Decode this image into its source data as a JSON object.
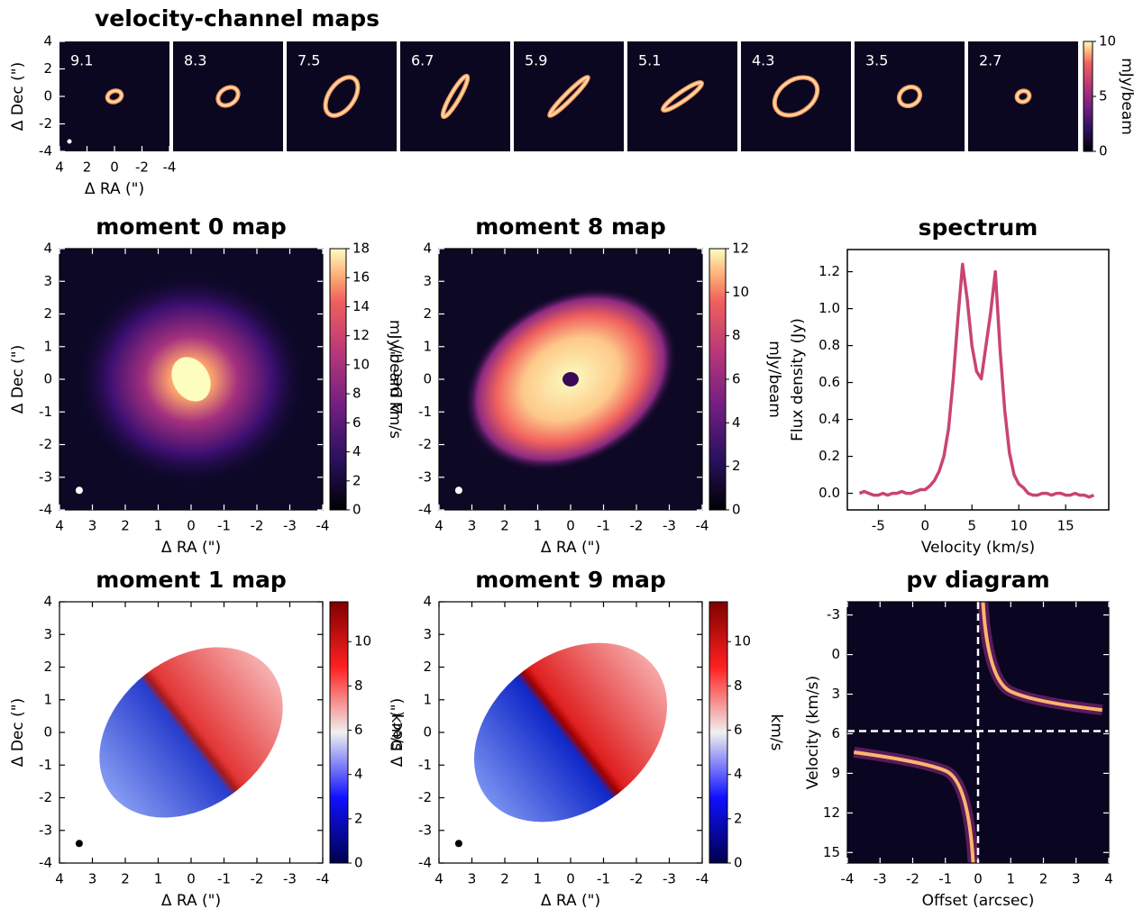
{
  "chart_data": [
    {
      "type": "channel_maps",
      "title": "velocity-channel maps",
      "channels": [
        9.1,
        8.3,
        7.5,
        6.7,
        5.9,
        5.1,
        4.3,
        3.5,
        2.7
      ],
      "xlabel": "Δ RA (\")",
      "ylabel": "Δ Dec (\")",
      "xlim": [
        4,
        -4
      ],
      "xticks": [
        4,
        2,
        0,
        -2,
        -4
      ],
      "ylim": [
        -4,
        4
      ],
      "yticks": [
        -4,
        -2,
        0,
        2,
        4
      ],
      "colormap": "magma",
      "colorbar": {
        "label": "mJy/beam",
        "lim": [
          0,
          10
        ],
        "ticks": [
          0,
          5,
          10
        ]
      }
    },
    {
      "type": "image",
      "title": "moment 0 map",
      "xlabel": "Δ RA (\")",
      "ylabel": "Δ Dec (\")",
      "xlim": [
        4,
        -4
      ],
      "xticks": [
        4,
        3,
        2,
        1,
        0,
        -1,
        -2,
        -3,
        -4
      ],
      "ylim": [
        -4,
        4
      ],
      "yticks": [
        -4,
        -3,
        -2,
        -1,
        0,
        1,
        2,
        3,
        4
      ],
      "colormap": "magma",
      "colorbar": {
        "label": "mJy/beam km/s",
        "lim": [
          0,
          18
        ],
        "ticks": [
          0,
          2,
          4,
          6,
          8,
          10,
          12,
          14,
          16,
          18
        ]
      }
    },
    {
      "type": "image",
      "title": "moment 8 map",
      "xlabel": "Δ RA (\")",
      "ylabel": "Δ Dec (\")",
      "xlim": [
        4,
        -4
      ],
      "xticks": [
        4,
        3,
        2,
        1,
        0,
        -1,
        -2,
        -3,
        -4
      ],
      "ylim": [
        -4,
        4
      ],
      "yticks": [
        -4,
        -3,
        -2,
        -1,
        0,
        1,
        2,
        3,
        4
      ],
      "colormap": "magma",
      "colorbar": {
        "label": "mJy/beam",
        "lim": [
          0,
          12
        ],
        "ticks": [
          0,
          2,
          4,
          6,
          8,
          10,
          12
        ]
      }
    },
    {
      "type": "line",
      "title": "spectrum",
      "xlabel": "Velocity (km/s)",
      "ylabel": "Flux density (Jy)",
      "color": "#c9456f",
      "xlim": [
        -8.3,
        19.6
      ],
      "xticks": [
        -5,
        0,
        5,
        10,
        15
      ],
      "ylim": [
        -0.09,
        1.32
      ],
      "yticks": [
        {
          "value": 0,
          "label": "0.0"
        },
        0.2,
        0.4,
        0.6,
        0.8,
        {
          "value": 1,
          "label": "1.0"
        },
        1.2
      ],
      "x": [
        -7,
        -6.5,
        -6,
        -5.5,
        -5,
        -4.5,
        -4,
        -3.5,
        -3,
        -2.5,
        -2,
        -1.5,
        -1,
        -0.5,
        0,
        0.5,
        1,
        1.5,
        2,
        2.5,
        3,
        3.5,
        4,
        4.5,
        5,
        5.5,
        6,
        6.5,
        7,
        7.5,
        8,
        8.5,
        9,
        9.5,
        10,
        10.5,
        11,
        11.5,
        12,
        12.5,
        13,
        13.5,
        14,
        14.5,
        15,
        15.5,
        16,
        16.5,
        17,
        17.5,
        18
      ],
      "values": [
        0,
        0.01,
        0,
        -0.01,
        -0.01,
        0,
        -0.01,
        0,
        0,
        0.01,
        0,
        0,
        0.01,
        0.02,
        0.02,
        0.04,
        0.07,
        0.12,
        0.2,
        0.35,
        0.62,
        0.95,
        1.24,
        1.05,
        0.8,
        0.66,
        0.62,
        0.8,
        0.98,
        1.2,
        0.78,
        0.45,
        0.22,
        0.1,
        0.05,
        0.03,
        0,
        -0.01,
        -0.01,
        0,
        0,
        -0.01,
        0,
        0,
        -0.01,
        -0.01,
        0,
        -0.01,
        -0.01,
        -0.02,
        -0.01
      ]
    },
    {
      "type": "image",
      "title": "moment 1 map",
      "xlabel": "Δ RA (\")",
      "ylabel": "Δ Dec (\")",
      "xlim": [
        4,
        -4
      ],
      "xticks": [
        4,
        3,
        2,
        1,
        0,
        -1,
        -2,
        -3,
        -4
      ],
      "ylim": [
        -4,
        4
      ],
      "yticks": [
        -4,
        -3,
        -2,
        -1,
        0,
        1,
        2,
        3,
        4
      ],
      "colormap": "bwr",
      "colorbar": {
        "label": "km/s",
        "lim": [
          0,
          11.8
        ],
        "ticks": [
          0,
          2,
          4,
          6,
          8,
          10
        ]
      }
    },
    {
      "type": "image",
      "title": "moment 9 map",
      "xlabel": "Δ RA (\")",
      "ylabel": "Δ Dec (\")",
      "xlim": [
        4,
        -4
      ],
      "xticks": [
        4,
        3,
        2,
        1,
        0,
        -1,
        -2,
        -3,
        -4
      ],
      "ylim": [
        -4,
        4
      ],
      "yticks": [
        -4,
        -3,
        -2,
        -1,
        0,
        1,
        2,
        3,
        4
      ],
      "colormap": "bwr",
      "colorbar": {
        "label": "km/s",
        "lim": [
          0,
          11.8
        ],
        "ticks": [
          0,
          2,
          4,
          6,
          8,
          10
        ]
      }
    },
    {
      "type": "image",
      "title": "pv diagram",
      "xlabel": "Offset (arcsec)",
      "ylabel": "Velocity (km/s)",
      "xlim": [
        -4,
        4
      ],
      "xticks": [
        -4,
        -3,
        -2,
        -1,
        0,
        1,
        2,
        3,
        4
      ],
      "ylim": [
        15.8,
        -4
      ],
      "yticks": [
        -3,
        0,
        3,
        6,
        9,
        12,
        15
      ],
      "colormap": "magma",
      "reference_lines": {
        "x": 0,
        "y": 5.8
      }
    }
  ]
}
